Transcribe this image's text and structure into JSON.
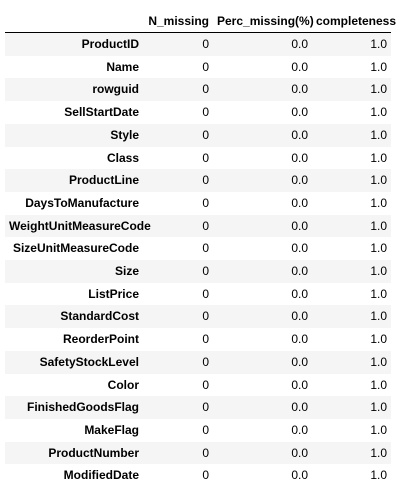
{
  "table": {
    "index_header": "",
    "columns": [
      "N_missing",
      "Perc_missing(%)",
      "completeness"
    ],
    "rows": [
      {
        "index": "ProductID",
        "n_missing": "0",
        "perc_missing": "0.0",
        "completeness": "1.0"
      },
      {
        "index": "Name",
        "n_missing": "0",
        "perc_missing": "0.0",
        "completeness": "1.0"
      },
      {
        "index": "rowguid",
        "n_missing": "0",
        "perc_missing": "0.0",
        "completeness": "1.0"
      },
      {
        "index": "SellStartDate",
        "n_missing": "0",
        "perc_missing": "0.0",
        "completeness": "1.0"
      },
      {
        "index": "Style",
        "n_missing": "0",
        "perc_missing": "0.0",
        "completeness": "1.0"
      },
      {
        "index": "Class",
        "n_missing": "0",
        "perc_missing": "0.0",
        "completeness": "1.0"
      },
      {
        "index": "ProductLine",
        "n_missing": "0",
        "perc_missing": "0.0",
        "completeness": "1.0"
      },
      {
        "index": "DaysToManufacture",
        "n_missing": "0",
        "perc_missing": "0.0",
        "completeness": "1.0"
      },
      {
        "index": "WeightUnitMeasureCode",
        "n_missing": "0",
        "perc_missing": "0.0",
        "completeness": "1.0"
      },
      {
        "index": "SizeUnitMeasureCode",
        "n_missing": "0",
        "perc_missing": "0.0",
        "completeness": "1.0"
      },
      {
        "index": "Size",
        "n_missing": "0",
        "perc_missing": "0.0",
        "completeness": "1.0"
      },
      {
        "index": "ListPrice",
        "n_missing": "0",
        "perc_missing": "0.0",
        "completeness": "1.0"
      },
      {
        "index": "StandardCost",
        "n_missing": "0",
        "perc_missing": "0.0",
        "completeness": "1.0"
      },
      {
        "index": "ReorderPoint",
        "n_missing": "0",
        "perc_missing": "0.0",
        "completeness": "1.0"
      },
      {
        "index": "SafetyStockLevel",
        "n_missing": "0",
        "perc_missing": "0.0",
        "completeness": "1.0"
      },
      {
        "index": "Color",
        "n_missing": "0",
        "perc_missing": "0.0",
        "completeness": "1.0"
      },
      {
        "index": "FinishedGoodsFlag",
        "n_missing": "0",
        "perc_missing": "0.0",
        "completeness": "1.0"
      },
      {
        "index": "MakeFlag",
        "n_missing": "0",
        "perc_missing": "0.0",
        "completeness": "1.0"
      },
      {
        "index": "ProductNumber",
        "n_missing": "0",
        "perc_missing": "0.0",
        "completeness": "1.0"
      },
      {
        "index": "ModifiedDate",
        "n_missing": "0",
        "perc_missing": "0.0",
        "completeness": "1.0"
      }
    ]
  }
}
